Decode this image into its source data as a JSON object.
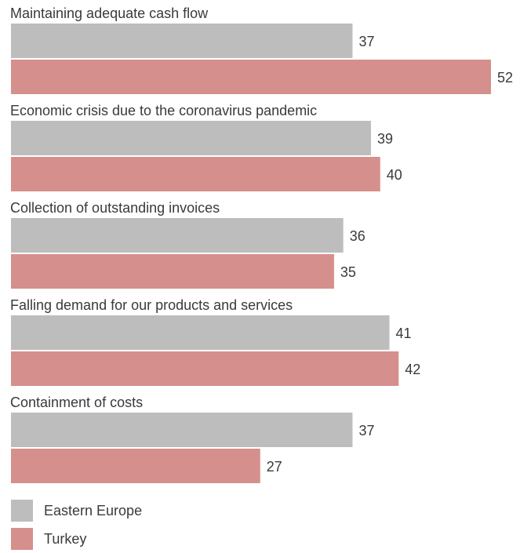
{
  "chart_data": {
    "type": "bar",
    "orientation": "horizontal",
    "categories": [
      "Maintaining adequate cash flow",
      "Economic crisis due to the coronavirus pandemic",
      "Collection of outstanding invoices",
      "Falling demand for our products and services",
      "Containment of costs"
    ],
    "series": [
      {
        "name": "Eastern Europe",
        "values": [
          37,
          39,
          36,
          41,
          37
        ],
        "color": "#bdbdbd"
      },
      {
        "name": "Turkey",
        "values": [
          52,
          40,
          35,
          42,
          27
        ],
        "color": "#d58f8c"
      }
    ],
    "xlim": [
      0,
      52
    ],
    "grid": false,
    "legend_position": "bottom-left"
  }
}
